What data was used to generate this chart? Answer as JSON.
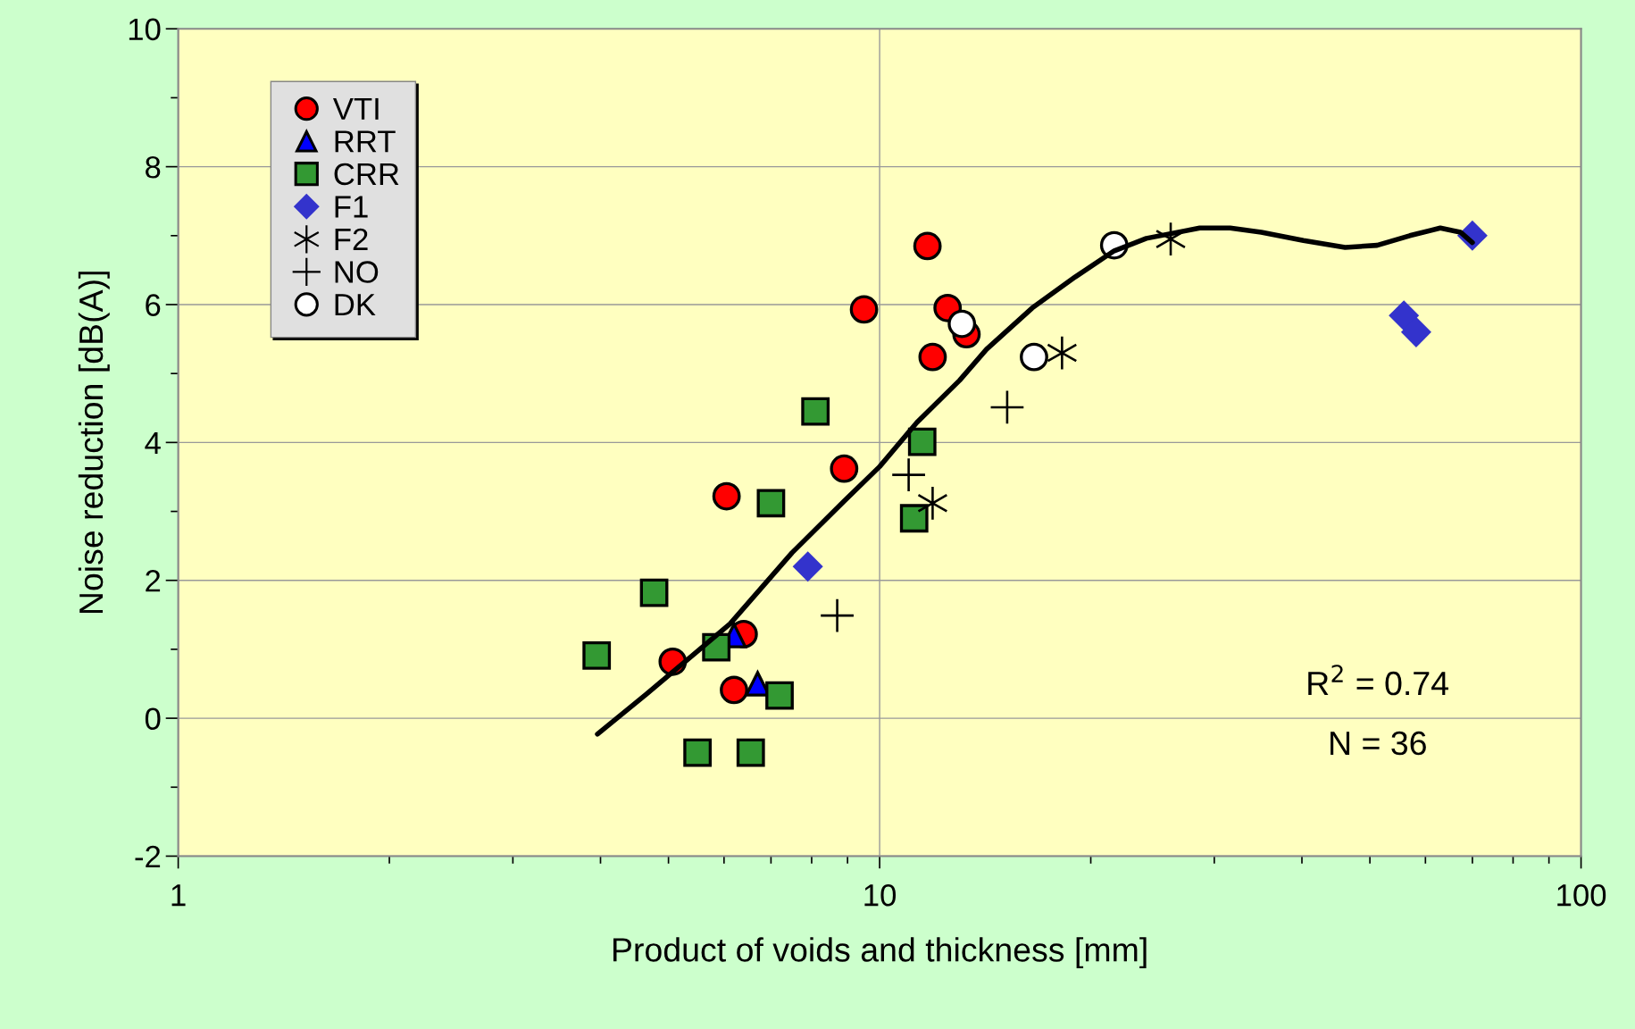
{
  "chart_data": {
    "type": "scatter",
    "xlabel": "Product of voids and thickness [mm]",
    "ylabel": "Noise reduction [dB(A)]",
    "log": "x",
    "xlim": [
      1,
      100
    ],
    "xticks": [
      1,
      10,
      100
    ],
    "ylim": [
      -2,
      10
    ],
    "yticks": [
      -2,
      0,
      2,
      4,
      6,
      8,
      10
    ],
    "grid": true,
    "legend": "top left",
    "annotations": [
      "R$^{2}$ = 0.74",
      "N = 36"
    ],
    "series": [
      {
        "name": "VTI",
        "marker": "circle",
        "color": "#ff0000",
        "x": [
          11.7,
          9.5,
          12.5,
          13.3,
          11.9,
          8.9,
          6.05,
          6.4,
          5.07,
          6.2
        ],
        "values": [
          6.85,
          5.93,
          5.95,
          5.57,
          5.24,
          3.62,
          3.22,
          1.22,
          0.82,
          0.41
        ]
      },
      {
        "name": "RRT",
        "marker": "triangle",
        "color": "#0000ff",
        "x": [
          6.2,
          6.7
        ],
        "values": [
          1.2,
          0.5
        ]
      },
      {
        "name": "CRR",
        "marker": "square",
        "color": "#339933",
        "x": [
          8.1,
          11.5,
          7.0,
          11.2,
          4.77,
          3.95,
          5.85,
          7.2,
          5.5,
          6.55
        ],
        "values": [
          4.45,
          4.01,
          3.12,
          2.9,
          1.82,
          0.91,
          1.03,
          0.33,
          -0.5,
          -0.5
        ]
      },
      {
        "name": "F1",
        "marker": "diamond",
        "color": "#3333cc",
        "x": [
          7.9,
          55.9,
          58.2,
          70.0
        ],
        "values": [
          2.2,
          5.84,
          5.6,
          7.0
        ]
      },
      {
        "name": "F2",
        "marker": "star",
        "color": "#000000",
        "x": [
          26.0,
          18.2,
          11.9
        ],
        "values": [
          6.95,
          5.3,
          3.12
        ]
      },
      {
        "name": "NO",
        "marker": "cross",
        "color": "#000000",
        "x": [
          15.2,
          11.0,
          8.7
        ],
        "values": [
          4.51,
          3.53,
          1.49
        ]
      },
      {
        "name": "DK",
        "marker": "circle",
        "color": "#ffffff",
        "x": [
          21.6,
          13.1,
          16.6
        ],
        "values": [
          6.86,
          5.72,
          5.24
        ]
      },
      {
        "type": "line",
        "color": "#000000",
        "line_style": "solid",
        "marker": "none",
        "x": [
          3.96,
          4.65,
          6.12,
          7.5,
          8.9,
          10.0,
          11.3,
          13.0,
          14.2,
          16.5,
          19.0,
          21.6,
          24.0,
          28.6,
          31.6,
          35.0,
          40.2,
          46.1,
          51.2,
          57.0,
          63.0,
          67.3,
          70.0
        ],
        "values": [
          -0.23,
          0.35,
          1.37,
          2.4,
          3.15,
          3.65,
          4.29,
          4.9,
          5.35,
          5.95,
          6.4,
          6.78,
          6.96,
          7.11,
          7.11,
          7.05,
          6.93,
          6.83,
          6.86,
          7.0,
          7.11,
          7.05,
          6.9
        ]
      }
    ]
  }
}
